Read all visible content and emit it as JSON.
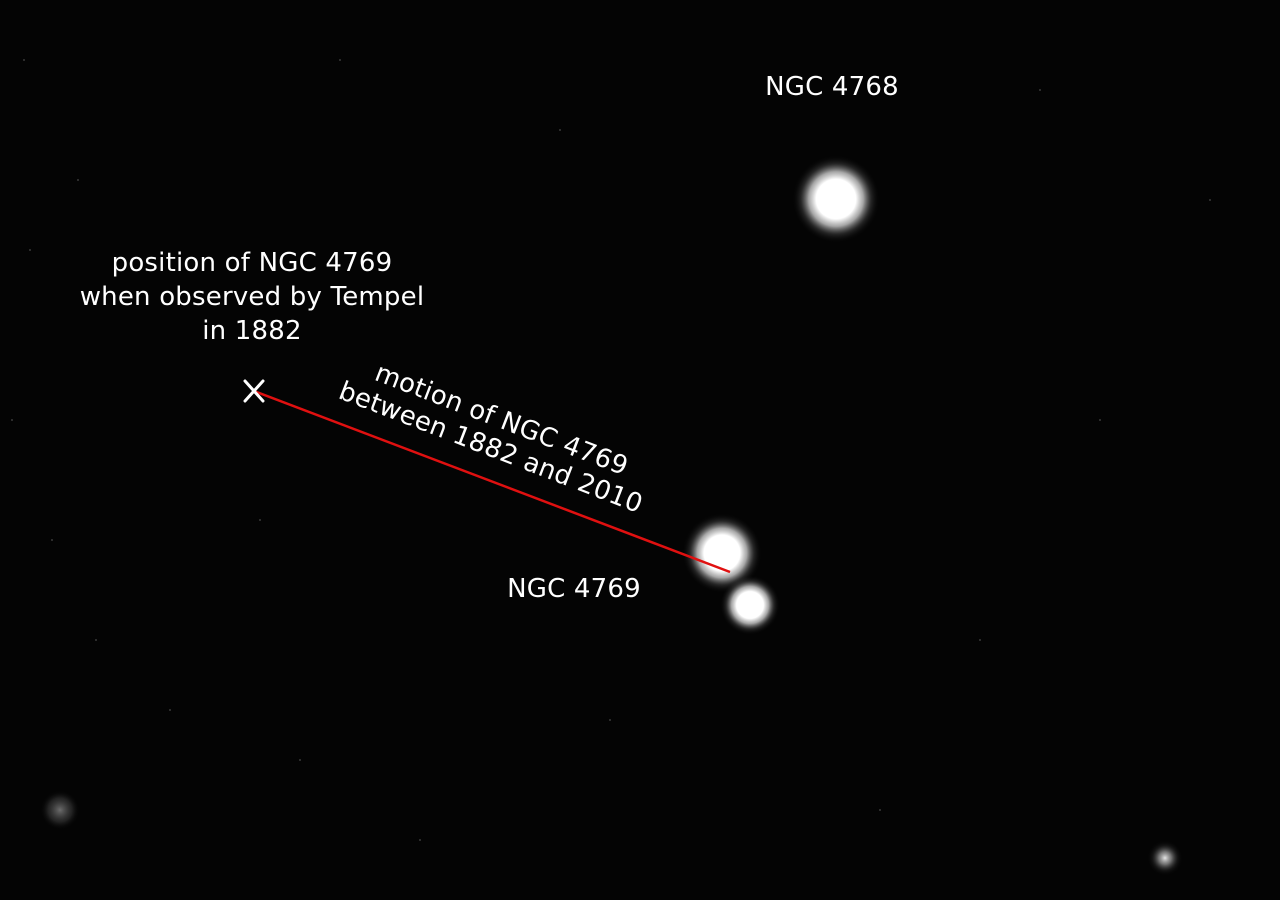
{
  "image": {
    "background_color": "#040404",
    "objects": [
      {
        "name": "NGC 4768",
        "label": "NGC 4768",
        "kind": "star"
      },
      {
        "name": "NGC 4769",
        "label": "NGC 4769",
        "kind": "star pair"
      }
    ]
  },
  "labels": {
    "ngc4768": "NGC 4768",
    "ngc4769": "NGC 4769",
    "position": {
      "line1": "position of NGC 4769",
      "line2": "when observed by Tempel",
      "line3": "in 1882"
    },
    "motion": {
      "line1": "motion of NGC 4769",
      "line2": "between 1882 and 2010"
    },
    "marker": "X"
  },
  "colors": {
    "motion_line": "#e01010",
    "text": "#ffffff",
    "marker": "#ffffff"
  }
}
